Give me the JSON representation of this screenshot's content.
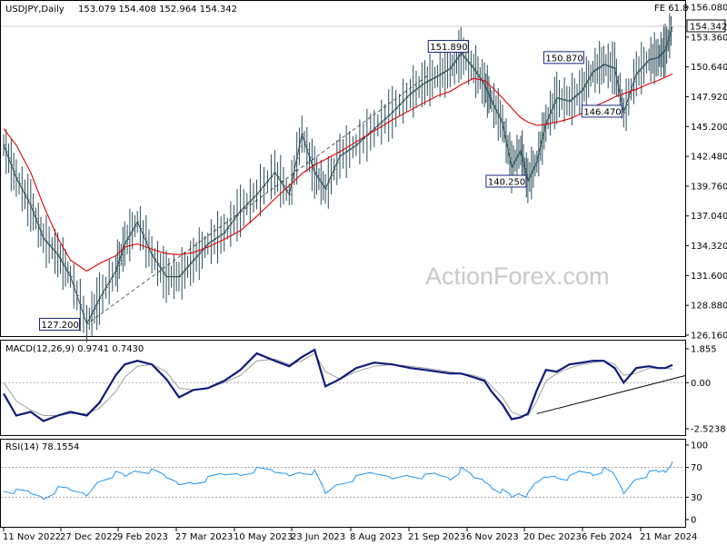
{
  "chart_data": [
    {
      "type": "line",
      "panel": "price",
      "title": "USDJPY,Daily",
      "ohlc_text": "153.079 154.408 152.964 154.342",
      "last_price": "154.342",
      "fib_label": "FE 61.8",
      "watermark": "ActionForex.com",
      "ylim": [
        126.16,
        156.08
      ],
      "y_ticks": [
        "156.080",
        "153.360",
        "150.640",
        "147.920",
        "145.200",
        "142.480",
        "139.760",
        "137.040",
        "134.320",
        "131.600",
        "128.880",
        "126.160"
      ],
      "x_ticks": [
        "11 Nov 2022",
        "27 Dec 2022",
        "9 Feb 2023",
        "27 Mar 2023",
        "10 May 2023",
        "23 Jun 2023",
        "8 Aug 2023",
        "21 Sep 2023",
        "6 Nov 2023",
        "20 Dec 2023",
        "6 Feb 2024",
        "21 Mar 2024"
      ],
      "x": [
        0,
        14,
        30,
        44,
        60,
        74,
        92,
        106,
        124,
        134,
        148,
        164,
        180,
        194,
        210,
        226,
        244,
        262,
        280,
        300,
        316,
        330,
        344,
        356,
        372,
        390,
        410,
        430,
        450,
        466,
        480,
        494,
        506,
        520,
        532,
        540,
        552,
        562,
        572,
        580,
        590,
        600,
        612,
        626,
        640,
        652,
        664,
        676,
        686,
        700,
        714,
        724,
        732,
        740
      ],
      "series": [
        {
          "values": [
            143.5,
            140.5,
            138.0,
            135.0,
            133.5,
            131.5,
            127.2,
            129.5,
            132.0,
            134.5,
            136.5,
            133.5,
            131.5,
            131.5,
            133.0,
            134.5,
            135.5,
            137.5,
            139.0,
            141.0,
            139.0,
            144.5,
            141.0,
            139.5,
            142.5,
            143.5,
            145.0,
            146.5,
            148.2,
            149.2,
            149.8,
            150.5,
            151.89,
            150.5,
            149.0,
            147.5,
            145.5,
            141.5,
            143.0,
            140.25,
            142.0,
            145.5,
            147.8,
            147.5,
            148.5,
            150.2,
            150.87,
            150.5,
            146.47,
            150.0,
            151.3,
            151.5,
            152.2,
            154.342
          ]
        },
        {
          "values": [
            145.0,
            143.5,
            141.0,
            138.0,
            135.0,
            133.0,
            132.0,
            132.7,
            133.4,
            134.2,
            134.5,
            134.0,
            133.6,
            133.5,
            133.7,
            134.2,
            134.9,
            135.7,
            137.0,
            138.6,
            139.8,
            140.9,
            141.7,
            142.2,
            142.9,
            143.8,
            144.8,
            145.8,
            146.7,
            147.4,
            148.0,
            148.4,
            149.0,
            149.6,
            149.4,
            148.8,
            147.8,
            146.9,
            146.0,
            145.6,
            145.3,
            145.4,
            145.6,
            145.9,
            146.4,
            147.0,
            147.4,
            147.9,
            148.2,
            148.6,
            149.1,
            149.4,
            149.7,
            150.0
          ]
        }
      ],
      "channel_line": {
        "x": [
          96,
          470
        ],
        "y": [
          127.4,
          149.9
        ]
      },
      "annotations": [
        {
          "text": "151.890",
          "x": 506,
          "y": 151.89
        },
        {
          "text": "150.870",
          "x": 664,
          "y": 150.87
        },
        {
          "text": "146.470",
          "x": 686,
          "y": 146.47
        },
        {
          "text": "140.250",
          "x": 580,
          "y": 140.25
        },
        {
          "text": "127.200",
          "x": 92,
          "y": 127.2
        }
      ],
      "colors": {
        "price": "#2b4d5a",
        "ma": "#e00000",
        "label_border": "#1a237e"
      }
    },
    {
      "type": "line",
      "panel": "macd",
      "label": "MACD(12,26,9) 0.9741 0.7430",
      "ylim": [
        -2.5238,
        1.855
      ],
      "y_ticks": [
        "1.855",
        "0.00",
        "-2.5238"
      ],
      "x": [
        0,
        14,
        30,
        44,
        60,
        74,
        92,
        106,
        124,
        134,
        148,
        164,
        180,
        194,
        210,
        226,
        244,
        262,
        280,
        300,
        316,
        330,
        344,
        356,
        372,
        390,
        410,
        430,
        450,
        466,
        480,
        494,
        506,
        520,
        532,
        540,
        552,
        562,
        572,
        580,
        590,
        600,
        612,
        626,
        640,
        652,
        664,
        676,
        686,
        700,
        714,
        724,
        732,
        740
      ],
      "series": [
        {
          "values": [
            -0.6,
            -1.8,
            -1.6,
            -2.1,
            -1.8,
            -1.6,
            -1.8,
            -1.1,
            0.4,
            1.0,
            1.2,
            1.0,
            0.2,
            -0.8,
            -0.4,
            -0.3,
            0.1,
            0.7,
            1.6,
            1.2,
            0.9,
            1.4,
            1.8,
            -0.2,
            0.2,
            0.8,
            1.1,
            1.0,
            0.8,
            0.7,
            0.6,
            0.5,
            0.5,
            0.3,
            0.1,
            -0.5,
            -1.2,
            -2.0,
            -1.9,
            -1.7,
            -0.4,
            0.7,
            0.6,
            1.0,
            1.1,
            1.2,
            1.2,
            0.8,
            0.0,
            0.8,
            0.9,
            0.8,
            0.8,
            0.97
          ]
        },
        {
          "values": [
            0.0,
            -1.0,
            -1.5,
            -1.8,
            -1.8,
            -1.7,
            -1.7,
            -1.4,
            -0.5,
            0.3,
            0.9,
            1.0,
            0.6,
            -0.3,
            -0.4,
            -0.3,
            0.0,
            0.4,
            1.2,
            1.3,
            1.0,
            1.2,
            1.6,
            0.6,
            0.2,
            0.6,
            0.9,
            1.0,
            0.9,
            0.8,
            0.7,
            0.6,
            0.5,
            0.4,
            0.2,
            -0.2,
            -0.8,
            -1.6,
            -1.8,
            -1.8,
            -1.0,
            0.1,
            0.5,
            0.8,
            1.0,
            1.1,
            1.2,
            1.0,
            0.4,
            0.5,
            0.8,
            0.8,
            0.8,
            0.74
          ]
        }
      ],
      "trend_line": {
        "x": [
          590,
          755
        ],
        "y": [
          -1.7,
          0.4
        ]
      },
      "colors": {
        "macd": "#0d1a7a",
        "signal": "#9e9e9e",
        "trend": "#000000"
      }
    },
    {
      "type": "line",
      "panel": "rsi",
      "label": "RSI(14) 78.1554",
      "ylim": [
        0,
        100
      ],
      "y_ticks": [
        "100",
        "70",
        "30",
        "0"
      ],
      "levels": [
        70,
        30
      ],
      "x": [
        0,
        14,
        30,
        44,
        60,
        74,
        92,
        106,
        124,
        134,
        148,
        164,
        180,
        194,
        210,
        226,
        244,
        262,
        280,
        300,
        316,
        330,
        344,
        356,
        372,
        390,
        410,
        430,
        450,
        466,
        480,
        494,
        506,
        520,
        532,
        540,
        552,
        562,
        572,
        580,
        590,
        600,
        612,
        626,
        640,
        652,
        664,
        676,
        686,
        700,
        714,
        724,
        732,
        740
      ],
      "series": [
        {
          "values": [
            42,
            38,
            35,
            30,
            40,
            38,
            33,
            55,
            62,
            58,
            67,
            64,
            55,
            48,
            52,
            55,
            60,
            62,
            66,
            62,
            60,
            66,
            64,
            35,
            50,
            55,
            60,
            56,
            62,
            58,
            60,
            56,
            66,
            55,
            52,
            46,
            38,
            30,
            36,
            32,
            48,
            58,
            60,
            56,
            64,
            62,
            66,
            58,
            36,
            58,
            62,
            64,
            66,
            78.1554
          ]
        }
      ],
      "colors": {
        "rsi": "#2196f3",
        "level": "#888888"
      }
    }
  ]
}
